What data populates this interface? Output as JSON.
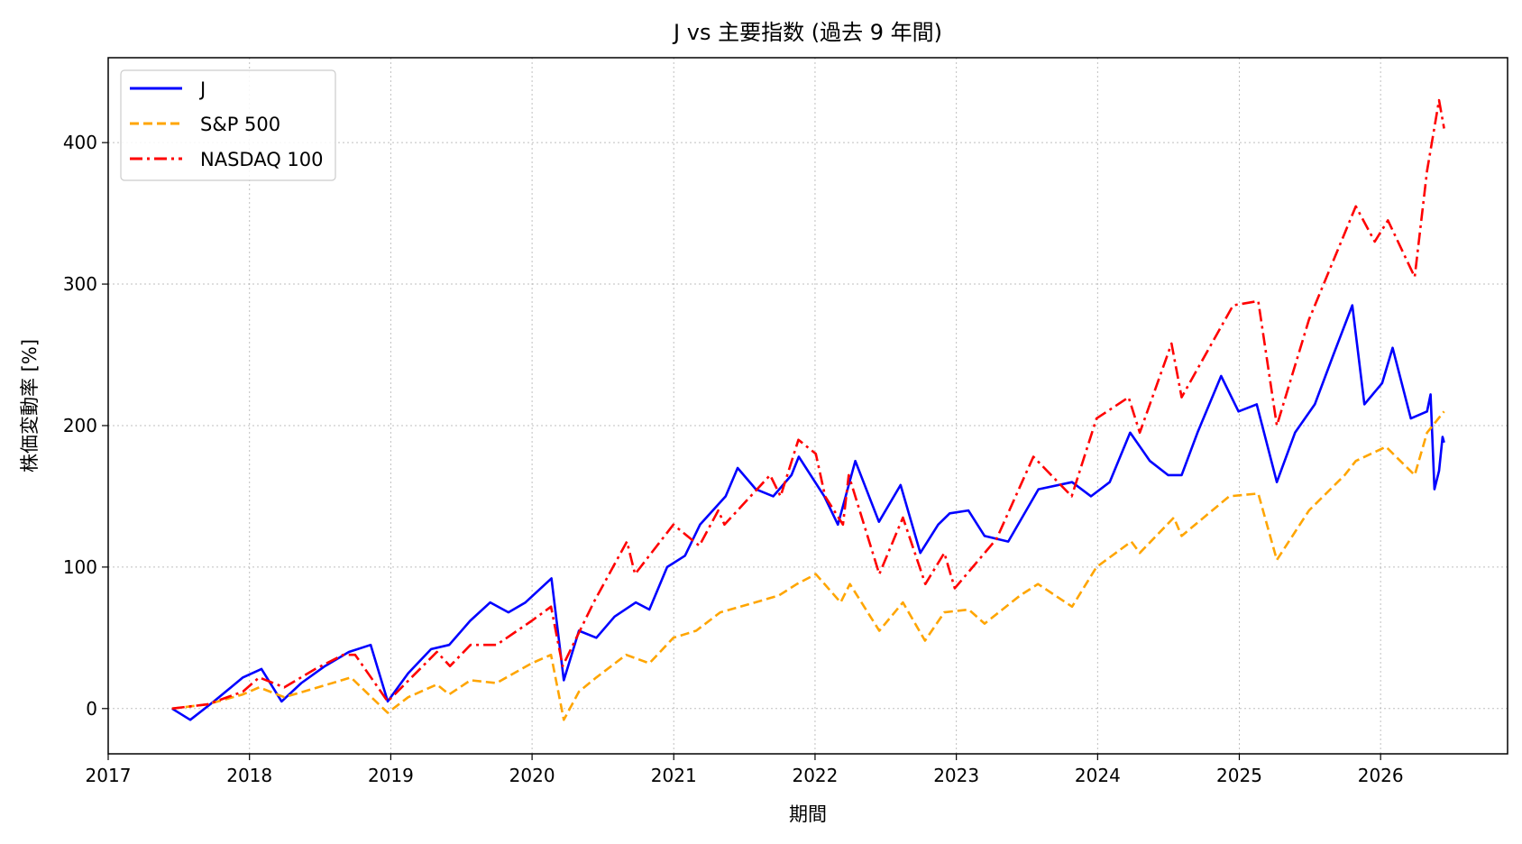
{
  "chart_data": {
    "type": "line",
    "title": "J vs 主要指数 (過去 9 年間)",
    "xlabel": "期間",
    "ylabel": "株価変動率 [%]",
    "x_ticks": [
      "2017",
      "2018",
      "2019",
      "2020",
      "2021",
      "2022",
      "2023",
      "2024",
      "2025",
      "2026"
    ],
    "y_ticks": [
      0,
      100,
      200,
      300,
      400
    ],
    "xlim": [
      "2017-01-01",
      "2026-11-25"
    ],
    "ylim": [
      -32,
      460
    ],
    "grid": true,
    "legend_position": "top-left",
    "series": [
      {
        "name": "J",
        "color": "#0000ff",
        "line_style": "solid",
        "points": [
          [
            "2017-06-15",
            0
          ],
          [
            "2017-08-01",
            -8
          ],
          [
            "2017-10-01",
            5
          ],
          [
            "2017-12-15",
            22
          ],
          [
            "2018-02-01",
            28
          ],
          [
            "2018-03-25",
            5
          ],
          [
            "2018-05-15",
            18
          ],
          [
            "2018-07-15",
            30
          ],
          [
            "2018-09-15",
            40
          ],
          [
            "2018-11-10",
            45
          ],
          [
            "2018-12-24",
            5
          ],
          [
            "2019-02-15",
            25
          ],
          [
            "2019-04-15",
            42
          ],
          [
            "2019-06-01",
            45
          ],
          [
            "2019-07-25",
            62
          ],
          [
            "2019-09-15",
            75
          ],
          [
            "2019-11-01",
            68
          ],
          [
            "2019-12-15",
            75
          ],
          [
            "2020-02-20",
            92
          ],
          [
            "2020-03-23",
            20
          ],
          [
            "2020-05-01",
            55
          ],
          [
            "2020-06-15",
            50
          ],
          [
            "2020-08-01",
            65
          ],
          [
            "2020-09-25",
            75
          ],
          [
            "2020-10-30",
            70
          ],
          [
            "2020-12-15",
            100
          ],
          [
            "2021-01-30",
            108
          ],
          [
            "2021-03-10",
            130
          ],
          [
            "2021-05-15",
            150
          ],
          [
            "2021-06-15",
            170
          ],
          [
            "2021-08-01",
            155
          ],
          [
            "2021-09-15",
            150
          ],
          [
            "2021-11-01",
            165
          ],
          [
            "2021-11-20",
            178
          ],
          [
            "2022-01-25",
            150
          ],
          [
            "2022-03-01",
            130
          ],
          [
            "2022-04-15",
            175
          ],
          [
            "2022-06-15",
            132
          ],
          [
            "2022-08-10",
            158
          ],
          [
            "2022-09-30",
            110
          ],
          [
            "2022-11-15",
            130
          ],
          [
            "2022-12-15",
            138
          ],
          [
            "2023-02-01",
            140
          ],
          [
            "2023-03-15",
            122
          ],
          [
            "2023-05-15",
            118
          ],
          [
            "2023-08-01",
            155
          ],
          [
            "2023-10-27",
            160
          ],
          [
            "2023-12-15",
            150
          ],
          [
            "2024-02-01",
            160
          ],
          [
            "2024-03-25",
            195
          ],
          [
            "2024-05-15",
            175
          ],
          [
            "2024-07-01",
            165
          ],
          [
            "2024-08-05",
            165
          ],
          [
            "2024-09-15",
            195
          ],
          [
            "2024-11-15",
            235
          ],
          [
            "2024-12-30",
            210
          ],
          [
            "2025-02-15",
            215
          ],
          [
            "2025-04-08",
            160
          ],
          [
            "2025-05-25",
            195
          ],
          [
            "2025-07-15",
            215
          ],
          [
            "2025-09-01",
            250
          ],
          [
            "2025-10-20",
            285
          ],
          [
            "2025-11-20",
            215
          ],
          [
            "2026-01-05",
            230
          ],
          [
            "2026-02-01",
            255
          ],
          [
            "2026-03-20",
            205
          ],
          [
            "2026-05-01",
            210
          ],
          [
            "2026-05-10",
            222
          ],
          [
            "2026-05-20",
            155
          ],
          [
            "2026-06-01",
            168
          ],
          [
            "2026-06-10",
            192
          ],
          [
            "2026-06-14",
            188
          ]
        ]
      },
      {
        "name": "S&P 500",
        "color": "#ffa500",
        "line_style": "dashed",
        "points": [
          [
            "2017-06-15",
            0
          ],
          [
            "2017-09-15",
            3
          ],
          [
            "2017-12-15",
            10
          ],
          [
            "2018-01-26",
            15
          ],
          [
            "2018-04-01",
            8
          ],
          [
            "2018-06-15",
            14
          ],
          [
            "2018-09-20",
            22
          ],
          [
            "2018-12-24",
            -3
          ],
          [
            "2019-02-15",
            8
          ],
          [
            "2019-04-30",
            17
          ],
          [
            "2019-06-01",
            10
          ],
          [
            "2019-07-26",
            20
          ],
          [
            "2019-10-01",
            18
          ],
          [
            "2019-12-31",
            32
          ],
          [
            "2020-02-19",
            38
          ],
          [
            "2020-03-23",
            -8
          ],
          [
            "2020-05-01",
            12
          ],
          [
            "2020-06-15",
            22
          ],
          [
            "2020-08-31",
            38
          ],
          [
            "2020-10-30",
            32
          ],
          [
            "2020-12-31",
            50
          ],
          [
            "2021-02-28",
            55
          ],
          [
            "2021-05-01",
            68
          ],
          [
            "2021-07-30",
            75
          ],
          [
            "2021-09-30",
            80
          ],
          [
            "2021-11-15",
            88
          ],
          [
            "2022-01-03",
            95
          ],
          [
            "2022-03-08",
            75
          ],
          [
            "2022-04-01",
            88
          ],
          [
            "2022-06-16",
            55
          ],
          [
            "2022-08-16",
            75
          ],
          [
            "2022-10-12",
            48
          ],
          [
            "2022-12-01",
            68
          ],
          [
            "2023-02-02",
            70
          ],
          [
            "2023-03-15",
            60
          ],
          [
            "2023-06-15",
            80
          ],
          [
            "2023-07-31",
            88
          ],
          [
            "2023-10-27",
            72
          ],
          [
            "2023-12-29",
            100
          ],
          [
            "2024-03-28",
            118
          ],
          [
            "2024-04-19",
            110
          ],
          [
            "2024-07-16",
            135
          ],
          [
            "2024-08-05",
            122
          ],
          [
            "2024-12-06",
            150
          ],
          [
            "2025-02-19",
            152
          ],
          [
            "2025-04-08",
            105
          ],
          [
            "2025-06-30",
            140
          ],
          [
            "2025-09-30",
            165
          ],
          [
            "2025-10-29",
            175
          ],
          [
            "2026-01-15",
            185
          ],
          [
            "2026-03-30",
            165
          ],
          [
            "2026-05-01",
            195
          ],
          [
            "2026-06-14",
            210
          ]
        ]
      },
      {
        "name": "NASDAQ 100",
        "color": "#ff0000",
        "line_style": "dashdot",
        "points": [
          [
            "2017-06-15",
            0
          ],
          [
            "2017-09-15",
            3
          ],
          [
            "2017-12-15",
            12
          ],
          [
            "2018-01-26",
            22
          ],
          [
            "2018-04-01",
            15
          ],
          [
            "2018-06-20",
            28
          ],
          [
            "2018-08-31",
            38
          ],
          [
            "2018-10-01",
            38
          ],
          [
            "2018-12-24",
            5
          ],
          [
            "2019-04-30",
            40
          ],
          [
            "2019-06-03",
            30
          ],
          [
            "2019-07-26",
            45
          ],
          [
            "2019-10-01",
            45
          ],
          [
            "2019-12-31",
            62
          ],
          [
            "2020-02-19",
            72
          ],
          [
            "2020-03-20",
            30
          ],
          [
            "2020-06-08",
            75
          ],
          [
            "2020-09-02",
            118
          ],
          [
            "2020-09-23",
            95
          ],
          [
            "2020-12-31",
            130
          ],
          [
            "2021-03-08",
            115
          ],
          [
            "2021-04-26",
            140
          ],
          [
            "2021-05-12",
            130
          ],
          [
            "2021-09-07",
            165
          ],
          [
            "2021-10-04",
            150
          ],
          [
            "2021-11-19",
            190
          ],
          [
            "2022-01-03",
            180
          ],
          [
            "2022-01-27",
            150
          ],
          [
            "2022-03-14",
            130
          ],
          [
            "2022-03-29",
            165
          ],
          [
            "2022-06-16",
            95
          ],
          [
            "2022-08-16",
            135
          ],
          [
            "2022-10-13",
            88
          ],
          [
            "2022-12-01",
            110
          ],
          [
            "2022-12-28",
            85
          ],
          [
            "2023-04-15",
            120
          ],
          [
            "2023-07-19",
            178
          ],
          [
            "2023-10-26",
            150
          ],
          [
            "2023-12-29",
            205
          ],
          [
            "2024-03-21",
            220
          ],
          [
            "2024-04-19",
            195
          ],
          [
            "2024-07-10",
            258
          ],
          [
            "2024-08-05",
            220
          ],
          [
            "2024-12-16",
            285
          ],
          [
            "2025-02-19",
            288
          ],
          [
            "2025-04-08",
            200
          ],
          [
            "2025-06-30",
            275
          ],
          [
            "2025-10-29",
            355
          ],
          [
            "2025-12-17",
            330
          ],
          [
            "2026-01-20",
            345
          ],
          [
            "2026-03-30",
            305
          ],
          [
            "2026-05-01",
            380
          ],
          [
            "2026-06-01",
            430
          ],
          [
            "2026-06-14",
            410
          ]
        ]
      }
    ]
  }
}
